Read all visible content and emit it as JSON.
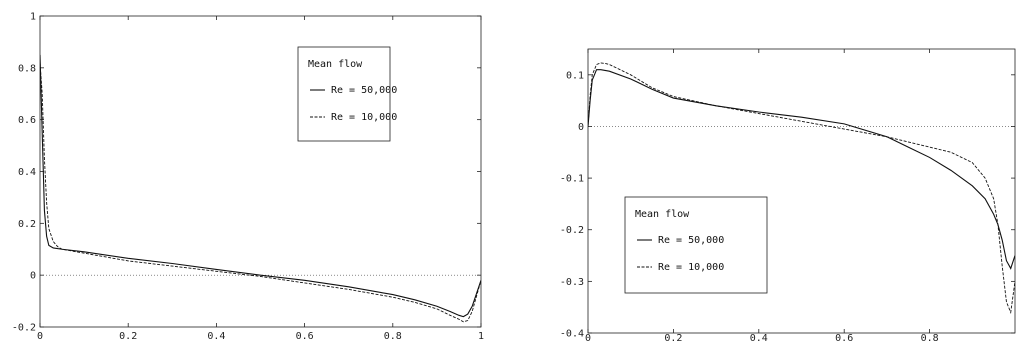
{
  "chart_data": [
    {
      "type": "line",
      "title": "",
      "xlabel": "",
      "ylabel": "",
      "xlim": [
        0,
        1
      ],
      "ylim": [
        -0.2,
        1
      ],
      "x_ticks": [
        "0",
        "0.2",
        "0.4",
        "0.6",
        "0.8",
        "1"
      ],
      "y_ticks": [
        "-0.2",
        "0",
        "0.2",
        "0.4",
        "0.6",
        "0.8",
        "1"
      ],
      "grid": false,
      "zero_line": true,
      "legend": {
        "title": "Mean flow",
        "placement": "top-right",
        "entries": [
          "Re = 50,000",
          "Re = 10,000"
        ]
      },
      "series": [
        {
          "name": "Re = 50,000",
          "style": "solid",
          "x": [
            0,
            0.005,
            0.01,
            0.015,
            0.02,
            0.03,
            0.05,
            0.1,
            0.2,
            0.3,
            0.4,
            0.5,
            0.6,
            0.7,
            0.8,
            0.85,
            0.9,
            0.93,
            0.95,
            0.96,
            0.97,
            0.98,
            0.99,
            1.0
          ],
          "y": [
            0.85,
            0.55,
            0.25,
            0.15,
            0.115,
            0.105,
            0.1,
            0.09,
            0.065,
            0.045,
            0.022,
            0.0,
            -0.02,
            -0.045,
            -0.075,
            -0.095,
            -0.12,
            -0.14,
            -0.155,
            -0.16,
            -0.15,
            -0.12,
            -0.07,
            -0.02
          ]
        },
        {
          "name": "Re = 10,000",
          "style": "dashed",
          "x": [
            0,
            0.005,
            0.01,
            0.015,
            0.02,
            0.03,
            0.04,
            0.05,
            0.1,
            0.2,
            0.3,
            0.4,
            0.5,
            0.6,
            0.7,
            0.8,
            0.85,
            0.9,
            0.93,
            0.95,
            0.96,
            0.97,
            0.98,
            0.99,
            1.0
          ],
          "y": [
            0.82,
            0.7,
            0.45,
            0.28,
            0.18,
            0.13,
            0.11,
            0.1,
            0.085,
            0.055,
            0.035,
            0.015,
            -0.005,
            -0.03,
            -0.055,
            -0.085,
            -0.105,
            -0.13,
            -0.155,
            -0.17,
            -0.18,
            -0.175,
            -0.14,
            -0.08,
            -0.02
          ]
        }
      ]
    },
    {
      "type": "line",
      "title": "",
      "xlabel": "",
      "ylabel": "",
      "xlim": [
        0,
        1
      ],
      "ylim": [
        -0.4,
        0.15
      ],
      "x_ticks": [
        "0",
        "0.2",
        "0.4",
        "0.6",
        "0.8"
      ],
      "y_ticks": [
        "-0.4",
        "-0.3",
        "-0.2",
        "-0.1",
        "0",
        "0.1"
      ],
      "grid": false,
      "zero_line": true,
      "legend": {
        "title": "Mean flow",
        "placement": "bottom-left",
        "entries": [
          "Re = 50,000",
          "Re = 10,000"
        ]
      },
      "series": [
        {
          "name": "Re = 50,000",
          "style": "solid",
          "x": [
            0,
            0.005,
            0.01,
            0.02,
            0.03,
            0.05,
            0.1,
            0.15,
            0.2,
            0.3,
            0.4,
            0.5,
            0.6,
            0.7,
            0.75,
            0.8,
            0.85,
            0.9,
            0.93,
            0.95,
            0.96,
            0.97,
            0.98,
            0.99,
            1.0
          ],
          "y": [
            0.0,
            0.05,
            0.09,
            0.11,
            0.11,
            0.107,
            0.092,
            0.072,
            0.055,
            0.04,
            0.028,
            0.018,
            0.005,
            -0.02,
            -0.04,
            -0.06,
            -0.085,
            -0.115,
            -0.14,
            -0.17,
            -0.19,
            -0.22,
            -0.26,
            -0.275,
            -0.25
          ]
        },
        {
          "name": "Re = 10,000",
          "style": "dashed",
          "x": [
            0,
            0.005,
            0.01,
            0.02,
            0.03,
            0.04,
            0.05,
            0.1,
            0.15,
            0.2,
            0.3,
            0.4,
            0.5,
            0.6,
            0.7,
            0.8,
            0.85,
            0.9,
            0.93,
            0.95,
            0.96,
            0.97,
            0.98,
            0.99,
            1.0
          ],
          "y": [
            0.0,
            0.06,
            0.1,
            0.12,
            0.123,
            0.122,
            0.12,
            0.1,
            0.075,
            0.058,
            0.04,
            0.025,
            0.01,
            -0.005,
            -0.02,
            -0.04,
            -0.05,
            -0.07,
            -0.1,
            -0.14,
            -0.19,
            -0.27,
            -0.34,
            -0.36,
            -0.3
          ]
        }
      ]
    }
  ]
}
